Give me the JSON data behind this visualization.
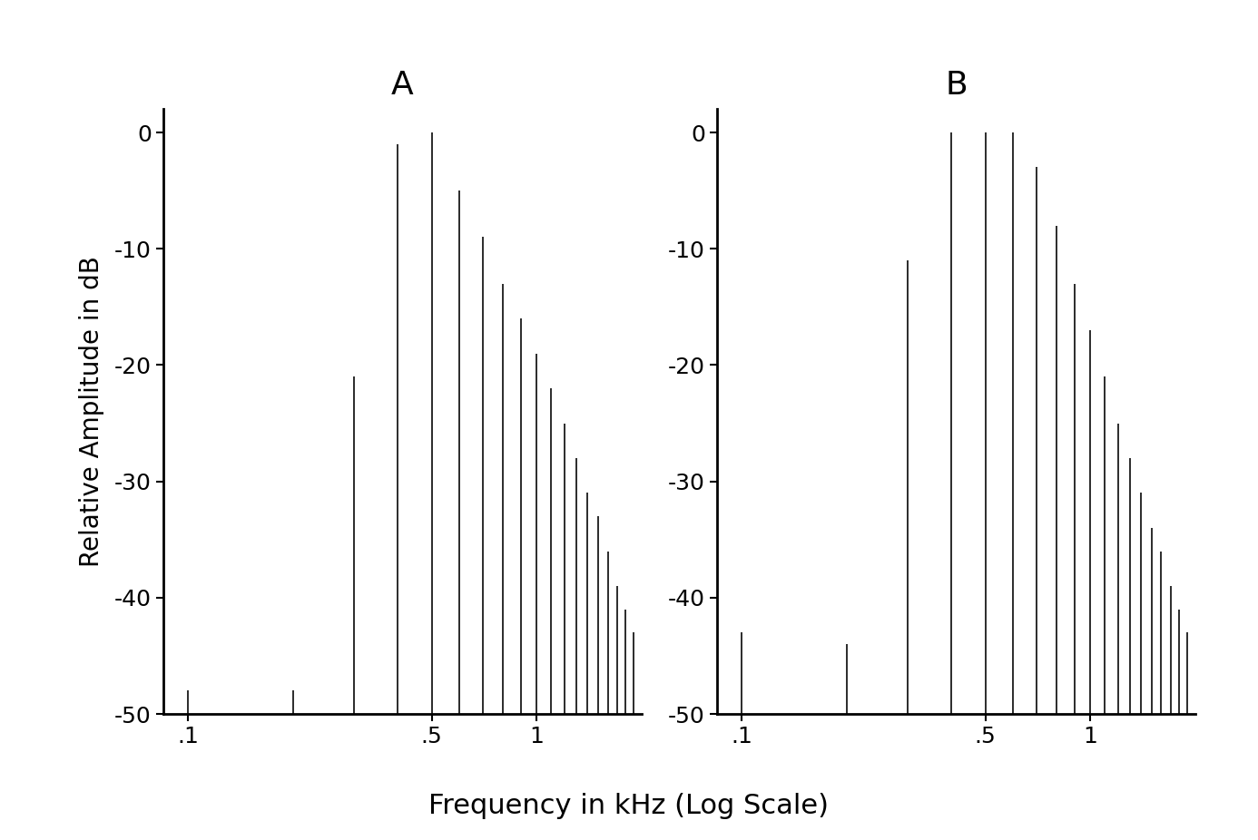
{
  "title_A": "A",
  "title_B": "B",
  "ylabel": "Relative Amplitude in dB",
  "xlabel": "Frequency in kHz (Log Scale)",
  "ylim": [
    -50,
    2
  ],
  "xlim": [
    0.085,
    2.0
  ],
  "yticks": [
    0,
    -10,
    -20,
    -30,
    -40,
    -50
  ],
  "xticks": [
    0.1,
    0.5,
    1.0
  ],
  "xticklabels": [
    ".1",
    ".5",
    "1"
  ],
  "background_color": "#ffffff",
  "line_color": "#1a1a1a",
  "A_freqs": [
    0.1,
    0.2,
    0.3,
    0.4,
    0.5,
    0.6,
    0.7,
    0.8,
    0.9,
    1.0,
    1.1,
    1.2,
    1.3,
    1.4,
    1.5,
    1.6,
    1.7,
    1.8,
    1.9
  ],
  "A_amps": [
    -48,
    -48,
    -21,
    -1,
    0,
    -5,
    -9,
    -13,
    -16,
    -19,
    -22,
    -25,
    -28,
    -31,
    -33,
    -36,
    -39,
    -41,
    -43
  ],
  "B_freqs": [
    0.1,
    0.2,
    0.3,
    0.4,
    0.5,
    0.6,
    0.7,
    0.8,
    0.9,
    1.0,
    1.1,
    1.2,
    1.3,
    1.4,
    1.5,
    1.6,
    1.7,
    1.8,
    1.9
  ],
  "B_amps": [
    -43,
    -44,
    -11,
    0,
    0,
    0,
    -3,
    -8,
    -13,
    -17,
    -21,
    -25,
    -28,
    -31,
    -34,
    -36,
    -39,
    -41,
    -43
  ],
  "title_fontsize": 26,
  "label_fontsize": 20,
  "tick_fontsize": 18
}
